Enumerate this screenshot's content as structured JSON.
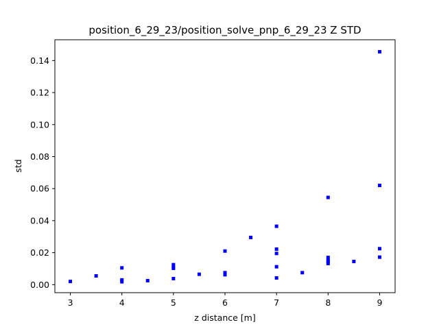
{
  "chart_data": {
    "type": "scatter",
    "title": "position_6_29_23/position_solve_pnp_6_29_23 Z STD",
    "xlabel": "z distance [m]",
    "ylabel": "std",
    "xlim": [
      2.7,
      9.3
    ],
    "ylim": [
      -0.005,
      0.153
    ],
    "xticks": [
      3,
      4,
      5,
      6,
      7,
      8,
      9
    ],
    "yticks": [
      0.0,
      0.02,
      0.04,
      0.06,
      0.08,
      0.1,
      0.12,
      0.14
    ],
    "ytick_labels": [
      "0.00",
      "0.02",
      "0.04",
      "0.06",
      "0.08",
      "0.10",
      "0.12",
      "0.14"
    ],
    "marker_color": "#0000ff",
    "grid": false,
    "series": [
      {
        "x": [
          3,
          3.5,
          4,
          4,
          4,
          4.5,
          5,
          5,
          5,
          5,
          5.5,
          6,
          6,
          6,
          6.5,
          7,
          7,
          7,
          7,
          7,
          7.5,
          8,
          8,
          8,
          8,
          8,
          8.5,
          9,
          9,
          9,
          9
        ],
        "y": [
          0.002,
          0.0055,
          0.0105,
          0.003,
          0.0018,
          0.0025,
          0.0125,
          0.011,
          0.0102,
          0.0038,
          0.0065,
          0.021,
          0.0075,
          0.0062,
          0.0295,
          0.0365,
          0.0222,
          0.0195,
          0.0112,
          0.0042,
          0.0075,
          0.0545,
          0.017,
          0.015,
          0.0132,
          0.0145,
          0.0145,
          0.1455,
          0.062,
          0.0225,
          0.0172
        ]
      }
    ]
  }
}
